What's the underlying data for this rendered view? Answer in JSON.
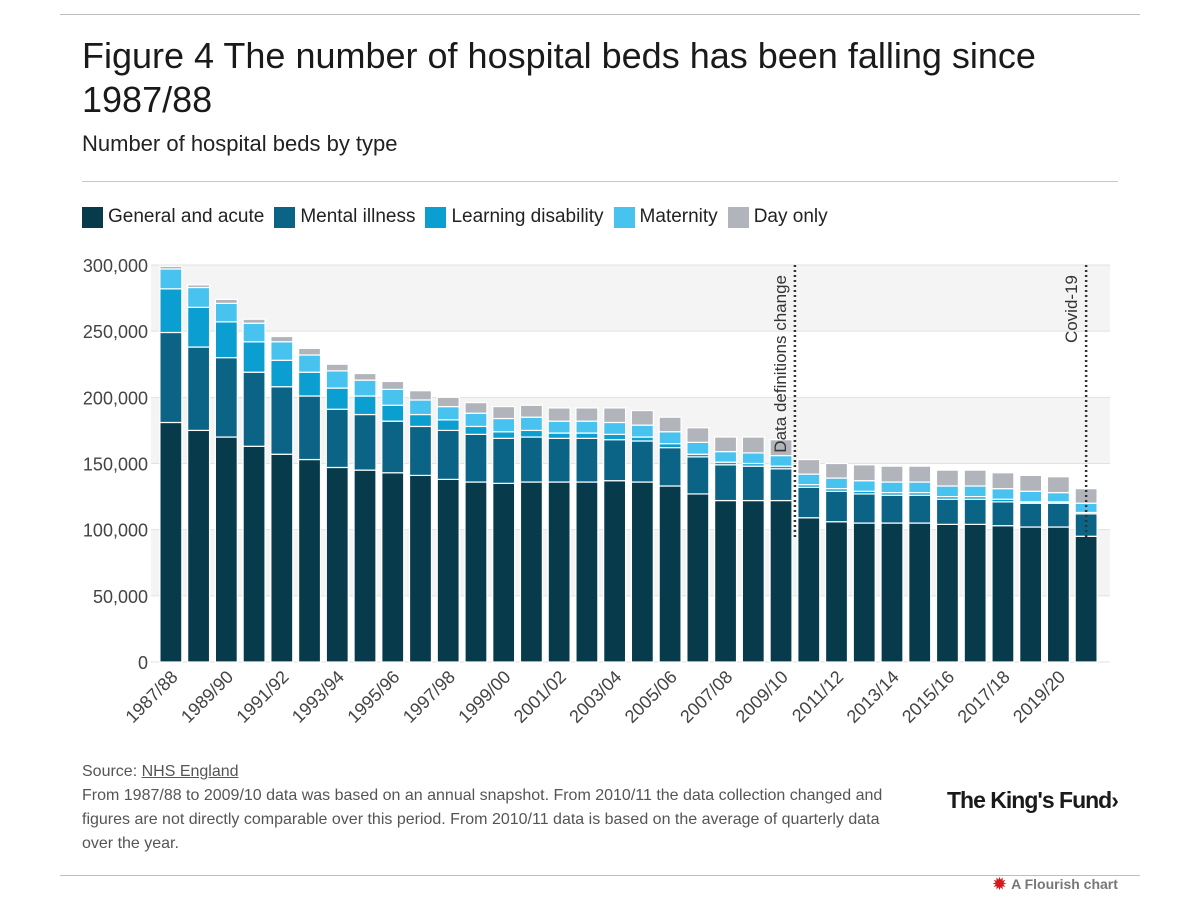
{
  "header": {
    "title": "Figure 4 The number of hospital beds has been falling since 1987/88",
    "subtitle": "Number of hospital beds by type"
  },
  "legend": [
    {
      "label": "General and acute",
      "color": "#073b4c"
    },
    {
      "label": "Mental illness",
      "color": "#0b6385"
    },
    {
      "label": "Learning disability",
      "color": "#0a9fd0"
    },
    {
      "label": "Maternity",
      "color": "#48c2ee"
    },
    {
      "label": "Day only",
      "color": "#b1b5bb"
    }
  ],
  "chart_data": {
    "type": "bar",
    "stacked": true,
    "categories": [
      "1987/88",
      "1988/89",
      "1989/90",
      "1990/91",
      "1991/92",
      "1992/93",
      "1993/94",
      "1994/95",
      "1995/96",
      "1996/97",
      "1997/98",
      "1998/99",
      "1999/00",
      "2000/01",
      "2001/02",
      "2002/03",
      "2003/04",
      "2004/05",
      "2005/06",
      "2006/07",
      "2007/08",
      "2008/09",
      "2009/10",
      "2010/11",
      "2011/12",
      "2012/13",
      "2013/14",
      "2014/15",
      "2015/16",
      "2016/17",
      "2017/18",
      "2018/19",
      "2019/20",
      "2020/21"
    ],
    "x_tick_labels": [
      "1987/88",
      "1989/90",
      "1991/92",
      "1993/94",
      "1995/96",
      "1997/98",
      "1999/00",
      "2001/02",
      "2003/04",
      "2005/06",
      "2007/08",
      "2009/10",
      "2011/12",
      "2013/14",
      "2015/16",
      "2017/18",
      "2019/20"
    ],
    "series": [
      {
        "name": "General and acute",
        "color": "#073b4c",
        "values": [
          181000,
          175000,
          170000,
          163000,
          157000,
          153000,
          147000,
          145000,
          143000,
          141000,
          138000,
          136000,
          135000,
          136000,
          136000,
          136000,
          137000,
          136000,
          133000,
          127000,
          122000,
          122000,
          122000,
          109000,
          106000,
          105000,
          105000,
          105000,
          104000,
          104000,
          103000,
          102000,
          102000,
          95000
        ]
      },
      {
        "name": "Mental illness",
        "color": "#0b6385",
        "values": [
          68000,
          63000,
          60000,
          56000,
          51000,
          48000,
          44000,
          42000,
          39000,
          37000,
          37000,
          36000,
          34000,
          34000,
          33000,
          33000,
          31000,
          31000,
          29000,
          28000,
          27000,
          26000,
          24000,
          23000,
          23000,
          22000,
          21000,
          21000,
          19000,
          19000,
          18000,
          18000,
          18000,
          17000
        ]
      },
      {
        "name": "Learning disability",
        "color": "#0a9fd0",
        "values": [
          33000,
          30000,
          27000,
          23000,
          20000,
          18000,
          16000,
          14000,
          12000,
          9000,
          8000,
          6000,
          5000,
          5000,
          4000,
          4000,
          4000,
          3000,
          3000,
          2000,
          2000,
          2000,
          2000,
          2000,
          2000,
          2000,
          2000,
          2000,
          2000,
          2000,
          2000,
          1000,
          1000,
          1000
        ]
      },
      {
        "name": "Maternity",
        "color": "#48c2ee",
        "values": [
          15000,
          15000,
          14000,
          14000,
          14000,
          13000,
          13000,
          12000,
          12000,
          11000,
          10000,
          10000,
          10000,
          10000,
          9000,
          9000,
          9000,
          9000,
          9000,
          9000,
          8000,
          8000,
          8000,
          8000,
          8000,
          8000,
          8000,
          8000,
          8000,
          8000,
          8000,
          8000,
          7000,
          7000
        ]
      },
      {
        "name": "Day only",
        "color": "#b1b5bb",
        "values": [
          2000,
          2000,
          3000,
          3000,
          4000,
          5000,
          5000,
          5000,
          6000,
          7000,
          7000,
          8000,
          9000,
          9000,
          10000,
          10000,
          11000,
          11000,
          11000,
          11000,
          11000,
          12000,
          12000,
          11000,
          11000,
          12000,
          12000,
          12000,
          12000,
          12000,
          12000,
          12000,
          12000,
          11000
        ]
      }
    ],
    "ylim": [
      0,
      300000
    ],
    "y_ticks": [
      "0",
      "50,000",
      "100,000",
      "150,000",
      "200,000",
      "250,000",
      "300,000"
    ],
    "y_tick_values": [
      0,
      50000,
      100000,
      150000,
      200000,
      250000,
      300000
    ],
    "grid": "horizontal",
    "legend_position": "top",
    "annotations": [
      {
        "label": "Data definitions change",
        "after_category": "2009/10"
      },
      {
        "label": "Covid-19",
        "at_category": "2020/21"
      }
    ]
  },
  "footer": {
    "source_prefix": "Source: ",
    "source_link": "NHS England",
    "note": "From 1987/88 to 2009/10 data was based on an annual snapshot. From 2010/11 the data collection changed and figures are not directly comparable over this period. From 2010/11 data is based on the average of quarterly data over the year."
  },
  "branding": {
    "logo": "The King's Fund›",
    "flourish": "A Flourish chart",
    "flourish_icon": "starburst-icon"
  }
}
